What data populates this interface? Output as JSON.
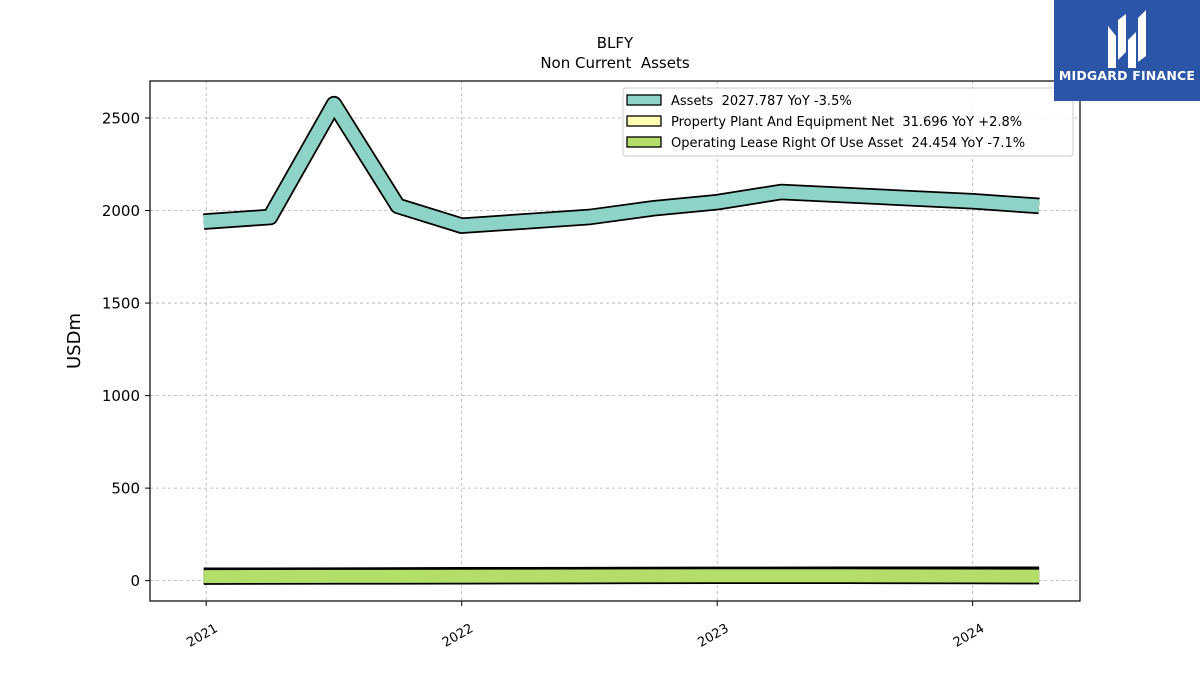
{
  "brand": {
    "name": "MIDGARD FINANCE",
    "color": "#2b56a8"
  },
  "chart_data": {
    "type": "area",
    "title": "BLFY",
    "subtitle": "Non Current  Assets",
    "ylabel": "USDm",
    "xlabel": "",
    "ylim": [
      -110,
      2700
    ],
    "xlim": [
      2020.78,
      2024.42
    ],
    "yticks": [
      0,
      500,
      1000,
      1500,
      2000,
      2500
    ],
    "xticks": [
      2021,
      2022,
      2023,
      2024
    ],
    "xtick_labels": [
      "2021",
      "2022",
      "2023",
      "2024"
    ],
    "grid": true,
    "legend_position": "top-right",
    "series": [
      {
        "name": "Assets  2027.787 YoY -3.5%",
        "color": "#8dd3c7",
        "x": [
          2020.99,
          2021.25,
          2021.5,
          2021.75,
          2022.0,
          2022.5,
          2022.75,
          2023.0,
          2023.25,
          2024.0,
          2024.26
        ],
        "values": [
          1940,
          1965,
          2575,
          2025,
          1918,
          1965,
          2012,
          2045,
          2100,
          2050,
          2025
        ]
      },
      {
        "name": "Property Plant And Equipment Net  31.696 YoY +2.8%",
        "color": "#ffffb3",
        "x": [
          2020.99,
          2021.5,
          2022.0,
          2022.5,
          2023.0,
          2023.5,
          2024.0,
          2024.26
        ],
        "values": [
          26,
          27,
          29,
          30,
          31,
          32,
          32,
          31.7
        ]
      },
      {
        "name": "Operating Lease Right Of Use Asset  24.454 YoY -7.1%",
        "color": "#b3de69",
        "x": [
          2020.99,
          2021.5,
          2022.0,
          2022.5,
          2023.0,
          2023.5,
          2024.0,
          2024.26
        ],
        "values": [
          22,
          23,
          24,
          25,
          26,
          26,
          25,
          24.5
        ]
      }
    ]
  }
}
